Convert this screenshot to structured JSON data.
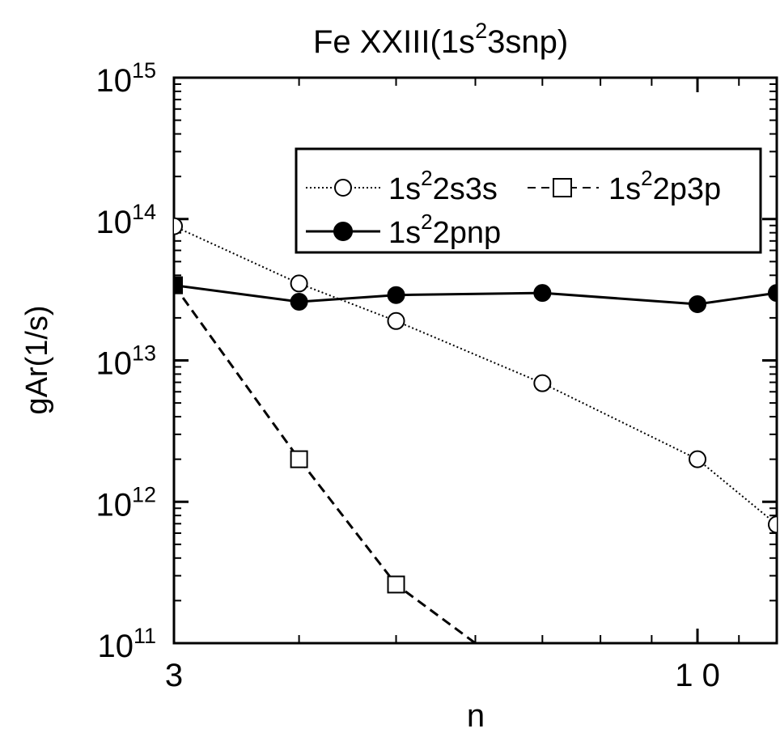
{
  "chart_data": {
    "type": "line",
    "title_main": "Fe XXIII(1s",
    "title_sup": "2",
    "title_tail": "3snp)",
    "xlabel": "n",
    "ylabel": "gAr(1/s)",
    "x_scale": "log",
    "y_scale": "log",
    "xlim": [
      3,
      12
    ],
    "ylim": [
      100000000000.0,
      1000000000000000.0
    ],
    "x_ticklabels": [
      {
        "value": 3,
        "label": "3"
      },
      {
        "value": 10,
        "label": "1 0"
      }
    ],
    "y_ticklabels": [
      {
        "value": 100000000000.0,
        "base": "10",
        "exp": "11"
      },
      {
        "value": 1000000000000.0,
        "base": "10",
        "exp": "12"
      },
      {
        "value": 10000000000000.0,
        "base": "10",
        "exp": "13"
      },
      {
        "value": 100000000000000.0,
        "base": "10",
        "exp": "14"
      },
      {
        "value": 1000000000000000.0,
        "base": "10",
        "exp": "15"
      }
    ],
    "x_minor_ticks": [
      4,
      5,
      6,
      7,
      8,
      9,
      11
    ],
    "grid": false,
    "legend_position": "top-right",
    "series": [
      {
        "legend": {
          "pre": "1s",
          "sup": "2",
          "post": "2s3s"
        },
        "marker": "open-circle",
        "line": "dotted",
        "x": [
          3,
          4,
          5,
          7,
          10,
          12
        ],
        "y": [
          89000000000000.0,
          35000000000000.0,
          19000000000000.0,
          6900000000000.0,
          2000000000000.0,
          690000000000.0
        ]
      },
      {
        "legend": {
          "pre": "1s",
          "sup": "2",
          "post": "2p3p"
        },
        "marker": "open-square",
        "line": "dashed",
        "x": [
          3,
          4,
          5,
          6
        ],
        "y": [
          34000000000000.0,
          2000000000000.0,
          260000000000.0,
          100000000000.0
        ]
      },
      {
        "legend": {
          "pre": "1s",
          "sup": "2",
          "post": "2pnp"
        },
        "marker": "filled-circle",
        "line": "solid",
        "x": [
          3,
          4,
          5,
          7,
          10,
          12
        ],
        "y": [
          34000000000000.0,
          26000000000000.0,
          29000000000000.0,
          30000000000000.0,
          25000000000000.0,
          30000000000000.0
        ]
      }
    ]
  }
}
